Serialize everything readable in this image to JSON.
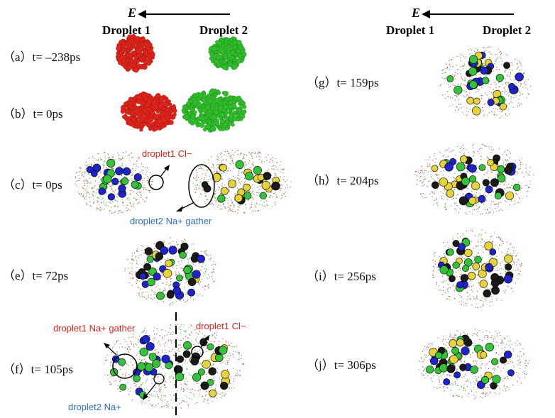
{
  "header": {
    "field_symbol": "E",
    "droplet1": "Droplet 1",
    "droplet2": "Droplet 2"
  },
  "colors": {
    "droplet1": "#e0241c",
    "droplet2": "#2fbf2a",
    "na_ion": "#1f24c8",
    "cl_ion": "#34c23a",
    "gold": "#e6d23a",
    "dark": "#1a1a1a",
    "annotation_red": "#e0241c",
    "annotation_blue": "#2b6fc9"
  },
  "panels": {
    "a": "（a）t= –238ps",
    "b": "（b）t= 0ps",
    "c": "（c）t= 0ps",
    "e": "（e）t= 72ps",
    "f": "（f）t= 105ps",
    "g": "（g）t= 159ps",
    "h": "（h）t= 204ps",
    "i": "（i）t= 256ps",
    "j": "（j）t= 306ps"
  },
  "annotations": {
    "c_cl": "droplet1 Cl−",
    "c_na": "droplet2 Na+ gather",
    "f_na_gather": "droplet1 Na+ gather",
    "f_cl": "droplet1 Cl−",
    "f_na": "droplet2 Na+"
  }
}
